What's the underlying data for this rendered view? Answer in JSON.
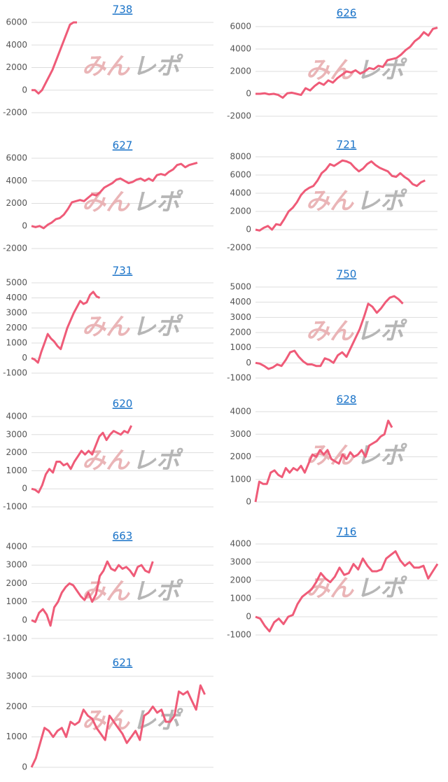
{
  "chart_data": [
    {
      "type": "line",
      "title": "738",
      "watermark": [
        "みん",
        "レポ"
      ],
      "color": "#ef5b78",
      "xlim": [
        0,
        52
      ],
      "ylim": [
        -2000,
        6000
      ],
      "yticks": [
        -2000,
        0,
        2000,
        4000,
        6000
      ],
      "grid": true,
      "values": [
        0,
        0,
        -300,
        0,
        600,
        1200,
        1800,
        2600,
        3400,
        4200,
        5000,
        5800,
        6000,
        6000
      ]
    },
    {
      "type": "line",
      "title": "626",
      "watermark": [
        "みん",
        "レポ"
      ],
      "color": "#ef5b78",
      "xlim": [
        0,
        40
      ],
      "ylim": [
        -2000,
        6000
      ],
      "yticks": [
        -2000,
        0,
        2000,
        4000,
        6000
      ],
      "grid": true,
      "values": [
        0,
        0,
        50,
        -50,
        0,
        -100,
        -350,
        50,
        100,
        0,
        -100,
        500,
        300,
        700,
        1000,
        800,
        1200,
        1000,
        1400,
        1700,
        2000,
        1900,
        2100,
        1800,
        2000,
        2300,
        2200,
        2500,
        2400,
        3000,
        3100,
        3200,
        3500,
        3900,
        4200,
        4700,
        5000,
        5500,
        5200,
        5800,
        5900
      ]
    },
    {
      "type": "line",
      "title": "627",
      "watermark": [
        "みん",
        "レポ"
      ],
      "color": "#ef5b78",
      "xlim": [
        0,
        45
      ],
      "ylim": [
        -2000,
        6000
      ],
      "yticks": [
        -2000,
        0,
        2000,
        4000,
        6000
      ],
      "grid": true,
      "values": [
        0,
        -100,
        0,
        -200,
        100,
        300,
        600,
        700,
        1000,
        1500,
        2100,
        2200,
        2300,
        2200,
        2500,
        2800,
        2700,
        3000,
        3400,
        3600,
        3800,
        4100,
        4200,
        4000,
        3800,
        3900,
        4100,
        4200,
        4000,
        4200,
        4000,
        4500,
        4600,
        4500,
        4800,
        5000,
        5400,
        5500,
        5200,
        5400,
        5500,
        5600
      ]
    },
    {
      "type": "line",
      "title": "721",
      "watermark": [
        "みん",
        "レポ"
      ],
      "color": "#ef5b78",
      "xlim": [
        0,
        44
      ],
      "ylim": [
        -2000,
        8000
      ],
      "yticks": [
        -2000,
        0,
        2000,
        4000,
        6000,
        8000
      ],
      "grid": true,
      "values": [
        0,
        -100,
        200,
        400,
        0,
        600,
        500,
        1200,
        2000,
        2400,
        3000,
        3800,
        4300,
        4600,
        4800,
        5400,
        6200,
        6600,
        7200,
        7000,
        7300,
        7600,
        7500,
        7300,
        6800,
        6400,
        6700,
        7200,
        7500,
        7100,
        6800,
        6600,
        6400,
        5900,
        5800,
        6200,
        5800,
        5500,
        5000,
        4800,
        5200,
        5400
      ]
    },
    {
      "type": "line",
      "title": "731",
      "watermark": [
        "みん",
        "レポ"
      ],
      "color": "#ef5b78",
      "xlim": [
        0,
        56
      ],
      "ylim": [
        -1000,
        5000
      ],
      "yticks": [
        -1000,
        0,
        1000,
        2000,
        3000,
        4000,
        5000
      ],
      "grid": true,
      "values": [
        0,
        -100,
        -300,
        400,
        1000,
        1600,
        1300,
        1100,
        800,
        600,
        1300,
        2000,
        2500,
        3000,
        3400,
        3800,
        3600,
        3700,
        4200,
        4400,
        4100,
        4000
      ]
    },
    {
      "type": "line",
      "title": "750",
      "watermark": [
        "みん",
        "レポ"
      ],
      "color": "#ef5b78",
      "xlim": [
        0,
        42
      ],
      "ylim": [
        -1000,
        5000
      ],
      "yticks": [
        -1000,
        0,
        1000,
        2000,
        3000,
        4000,
        5000
      ],
      "grid": true,
      "values": [
        0,
        -50,
        -200,
        -400,
        -300,
        -100,
        -200,
        200,
        700,
        800,
        400,
        100,
        -100,
        -100,
        -200,
        -200,
        300,
        200,
        0,
        500,
        700,
        400,
        1000,
        1600,
        2200,
        3000,
        3900,
        3700,
        3300,
        3600,
        4000,
        4300,
        4400,
        4200,
        3900
      ]
    },
    {
      "type": "line",
      "title": "620",
      "watermark": [
        "みん",
        "レポ"
      ],
      "color": "#ef5b78",
      "xlim": [
        0,
        51
      ],
      "ylim": [
        -1000,
        4000
      ],
      "yticks": [
        -1000,
        0,
        1000,
        2000,
        3000,
        4000
      ],
      "grid": true,
      "values": [
        0,
        -50,
        -200,
        200,
        800,
        1100,
        900,
        1500,
        1500,
        1300,
        1400,
        1100,
        1500,
        1800,
        2100,
        1900,
        2100,
        1900,
        2400,
        2900,
        3100,
        2700,
        3000,
        3200,
        3100,
        3000,
        3200,
        3100,
        3500
      ]
    },
    {
      "type": "line",
      "title": "628",
      "watermark": [
        "みん",
        "レポ"
      ],
      "color": "#ef5b78",
      "xlim": [
        0,
        48
      ],
      "ylim": [
        0,
        4000
      ],
      "yticks": [
        0,
        1000,
        2000,
        3000,
        4000
      ],
      "grid": true,
      "values": [
        0,
        900,
        800,
        800,
        1300,
        1400,
        1200,
        1100,
        1500,
        1300,
        1500,
        1400,
        1600,
        1300,
        1700,
        2100,
        2000,
        2300,
        2100,
        2300,
        1900,
        1800,
        1700,
        2100,
        1900,
        2200,
        2000,
        2100,
        2300,
        2000,
        2500,
        2600,
        2700,
        2900,
        3000,
        3600,
        3300
      ]
    },
    {
      "type": "line",
      "title": "663",
      "watermark": [
        "みん",
        "レポ"
      ],
      "color": "#ef5b78",
      "xlim": [
        0,
        48
      ],
      "ylim": [
        -1000,
        4000
      ],
      "yticks": [
        -1000,
        0,
        1000,
        2000,
        3000,
        4000
      ],
      "grid": true,
      "values": [
        0,
        -100,
        400,
        600,
        300,
        -300,
        700,
        1000,
        1500,
        1800,
        2000,
        1900,
        1600,
        1300,
        1100,
        1500,
        1000,
        1400,
        2400,
        2700,
        3200,
        2800,
        2700,
        3000,
        2800,
        2900,
        2700,
        2400,
        2900,
        3000,
        2700,
        2600,
        3200
      ]
    },
    {
      "type": "line",
      "title": "716",
      "watermark": [
        "みん",
        "レポ"
      ],
      "color": "#ef5b78",
      "xlim": [
        0,
        39
      ],
      "ylim": [
        -1000,
        4000
      ],
      "yticks": [
        -1000,
        0,
        1000,
        2000,
        3000,
        4000
      ],
      "grid": true,
      "values": [
        0,
        -100,
        -500,
        -800,
        -300,
        -100,
        -400,
        0,
        100,
        700,
        1100,
        1300,
        1500,
        1900,
        2400,
        2100,
        1900,
        2200,
        2700,
        2300,
        2400,
        2900,
        2600,
        3200,
        2800,
        2500,
        2500,
        2600,
        3200,
        3400,
        3600,
        3100,
        2800,
        3000,
        2700,
        2700,
        2800,
        2100,
        2500,
        2900
      ]
    },
    {
      "type": "line",
      "title": "621",
      "watermark": [
        "みん",
        "レポ"
      ],
      "color": "#ef5b78",
      "xlim": [
        0,
        42
      ],
      "ylim": [
        0,
        3000
      ],
      "yticks": [
        0,
        1000,
        2000,
        3000
      ],
      "grid": true,
      "values": [
        0,
        300,
        800,
        1300,
        1200,
        1000,
        1200,
        1300,
        1000,
        1500,
        1400,
        1500,
        1900,
        1700,
        1600,
        1300,
        1100,
        900,
        1700,
        1500,
        1300,
        1100,
        800,
        1000,
        1200,
        900,
        1700,
        1800,
        2000,
        1800,
        1900,
        1500,
        1500,
        1700,
        2500,
        2400,
        2500,
        2200,
        1900,
        2700,
        2400
      ]
    }
  ]
}
